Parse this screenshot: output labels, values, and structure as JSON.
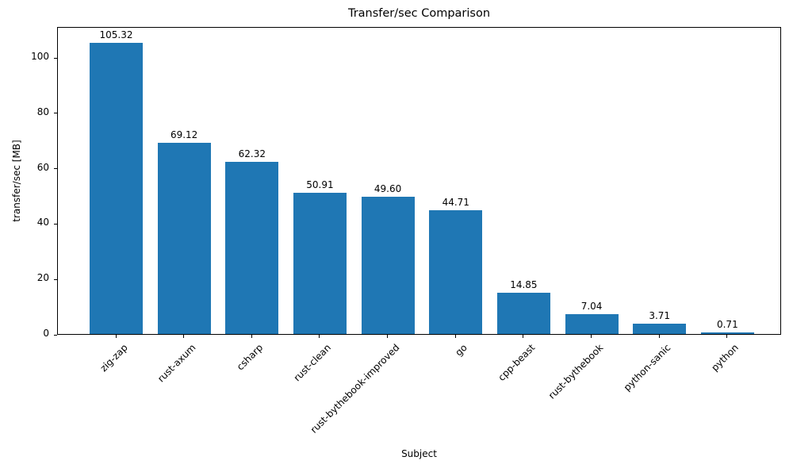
{
  "chart_data": {
    "type": "bar",
    "title": "Transfer/sec Comparison",
    "xlabel": "Subject",
    "ylabel": "transfer/sec [MB]",
    "categories": [
      "zig-zap",
      "rust-axum",
      "csharp",
      "rust-clean",
      "rust-bythebook-improved",
      "go",
      "cpp-beast",
      "rust-bythebook",
      "python-sanic",
      "python"
    ],
    "values": [
      105.32,
      69.12,
      62.32,
      50.91,
      49.6,
      44.71,
      14.85,
      7.04,
      3.71,
      0.71
    ],
    "value_labels": [
      "105.32",
      "69.12",
      "62.32",
      "50.91",
      "49.60",
      "44.71",
      "14.85",
      "7.04",
      "3.71",
      "0.71"
    ],
    "yticks": [
      0,
      20,
      40,
      60,
      80,
      100
    ],
    "ylim": [
      0,
      111.2
    ],
    "bar_color": "#1f77b4",
    "axis_color": "#000000",
    "background_color": "#ffffff",
    "grid": false,
    "legend_position": "none"
  }
}
